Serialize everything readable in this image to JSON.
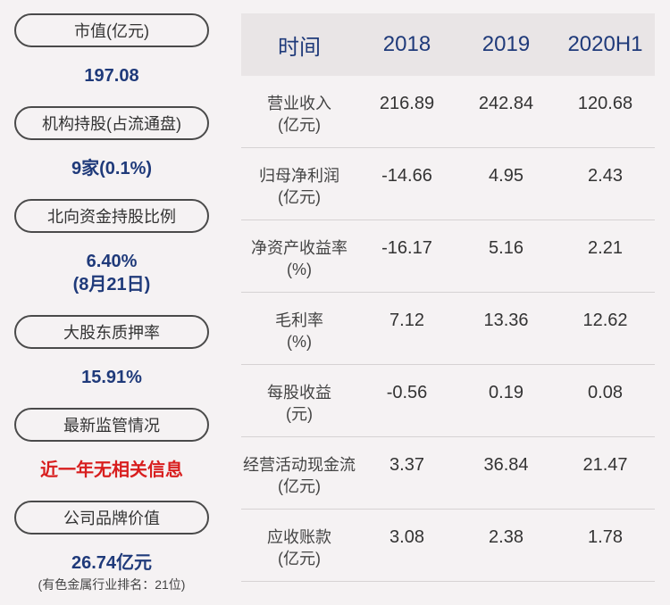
{
  "left_panel": [
    {
      "label": "市值(亿元)",
      "value": "197.08"
    },
    {
      "label": "机构持股(占流通盘)",
      "value": "9家(0.1%)"
    },
    {
      "label": "北向资金持股比例",
      "value": "6.40%",
      "value2": "(8月21日)"
    },
    {
      "label": "大股东质押率",
      "value": "15.91%"
    },
    {
      "label": "最新监管情况",
      "value": "近一年无相关信息"
    },
    {
      "label": "公司品牌价值",
      "value": "26.74亿元",
      "note": "(有色金属行业排名：21位)"
    }
  ],
  "table": {
    "headers": [
      "时间",
      "2018",
      "2019",
      "2020H1"
    ],
    "rows": [
      {
        "label1": "营业收入",
        "label2": "(亿元)",
        "values": [
          "216.89",
          "242.84",
          "120.68"
        ]
      },
      {
        "label1": "归母净利润",
        "label2": "(亿元)",
        "values": [
          "-14.66",
          "4.95",
          "2.43"
        ]
      },
      {
        "label1": "净资产收益率",
        "label2": "(%)",
        "values": [
          "-16.17",
          "5.16",
          "2.21"
        ]
      },
      {
        "label1": "毛利率",
        "label2": "(%)",
        "values": [
          "7.12",
          "13.36",
          "12.62"
        ]
      },
      {
        "label1": "每股收益",
        "label2": "(元)",
        "values": [
          "-0.56",
          "0.19",
          "0.08"
        ]
      },
      {
        "label1": "经营活动现金流",
        "label2": "(亿元)",
        "values": [
          "3.37",
          "36.84",
          "21.47"
        ]
      },
      {
        "label1": "应收账款",
        "label2": "(亿元)",
        "values": [
          "3.08",
          "2.38",
          "1.78"
        ]
      }
    ]
  },
  "colors": {
    "background": "#f5f2f3",
    "value_blue": "#1f3a7a",
    "alert_red": "#d81e1e",
    "header_bg": "#e9e5e6"
  }
}
